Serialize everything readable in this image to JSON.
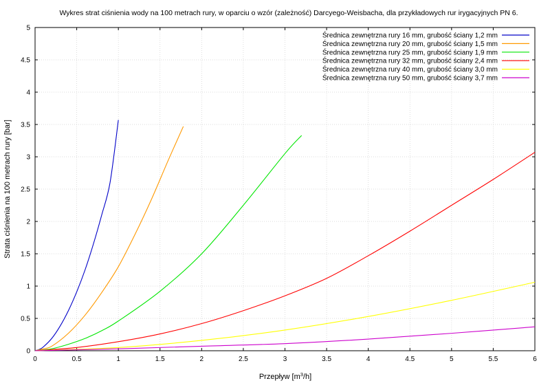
{
  "chart_data": {
    "type": "line",
    "title": "Wykres strat ciśnienia wody na 100 metrach rury, w oparciu o wzór (zależność) Darcyego-Weisbacha, dla przykładowych rur irygacyjnych PN 6.",
    "xlabel_main": "Przepływ [m",
    "xlabel_sup": "3",
    "xlabel_tail": "/h]",
    "ylabel": "Strata ciśnienia na 100 metrach rury [bar]",
    "xlim": [
      0,
      6
    ],
    "ylim": [
      0,
      5
    ],
    "grid": true,
    "legend_position": "top-right",
    "x_ticks": [
      "0",
      "0.5",
      "1",
      "1.5",
      "2",
      "2.5",
      "3",
      "3.5",
      "4",
      "4.5",
      "5",
      "5.5",
      "6"
    ],
    "y_ticks": [
      "0",
      "0.5",
      "1",
      "1.5",
      "2",
      "2.5",
      "3",
      "3.5",
      "4",
      "4.5",
      "5"
    ],
    "series": [
      {
        "name": "Średnica zewnętrzna rury 16 mm, grubość ściany 1,2 mm",
        "color": "#0000c8",
        "x": [
          0,
          0.05,
          0.1,
          0.2,
          0.3,
          0.4,
          0.5,
          0.6,
          0.7,
          0.8,
          0.9,
          1.0
        ],
        "y": [
          0,
          0.02,
          0.06,
          0.19,
          0.38,
          0.62,
          0.91,
          1.25,
          1.65,
          2.1,
          2.6,
          3.57
        ]
      },
      {
        "name": "Średnica zewnętrzna rury 20 mm, grubość ściany 1,5 mm",
        "color": "#ff9900",
        "x": [
          0,
          0.1,
          0.2,
          0.4,
          0.6,
          0.8,
          1.0,
          1.2,
          1.4,
          1.6,
          1.78
        ],
        "y": [
          0,
          0.03,
          0.07,
          0.27,
          0.55,
          0.9,
          1.3,
          1.8,
          2.35,
          2.95,
          3.47
        ]
      },
      {
        "name": "Średnica zewnętrzna rury 25 mm, grubość ściany 1,9 mm",
        "color": "#00e600",
        "x": [
          0,
          0.2,
          0.4,
          0.6,
          0.8,
          1.0,
          1.5,
          2.0,
          2.5,
          3.0,
          3.2
        ],
        "y": [
          0,
          0.03,
          0.1,
          0.19,
          0.31,
          0.46,
          0.92,
          1.5,
          2.25,
          3.05,
          3.33
        ]
      },
      {
        "name": "Średnica zewnętrzna rury 32 mm, grubość ściany 2,4 mm",
        "color": "#ff0000",
        "x": [
          0,
          0.5,
          1.0,
          1.5,
          2.0,
          2.5,
          3.0,
          3.5,
          4.0,
          4.5,
          5.0,
          5.5,
          6.0
        ],
        "y": [
          0,
          0.05,
          0.14,
          0.26,
          0.42,
          0.62,
          0.85,
          1.12,
          1.47,
          1.85,
          2.25,
          2.65,
          3.07
        ]
      },
      {
        "name": "Średnica zewnętrzna rury 40 mm, grubość ściany 3,0 mm",
        "color": "#ffff00",
        "x": [
          0,
          1.0,
          2.0,
          3.0,
          4.0,
          5.0,
          6.0
        ],
        "y": [
          0,
          0.05,
          0.16,
          0.32,
          0.53,
          0.78,
          1.06
        ]
      },
      {
        "name": "Średnica zewnętrzna rury 50 mm, grubość ściany 3,7 mm",
        "color": "#cc00cc",
        "x": [
          0,
          1.0,
          2.0,
          3.0,
          4.0,
          5.0,
          6.0
        ],
        "y": [
          0,
          0.03,
          0.07,
          0.11,
          0.18,
          0.27,
          0.37
        ]
      }
    ]
  }
}
